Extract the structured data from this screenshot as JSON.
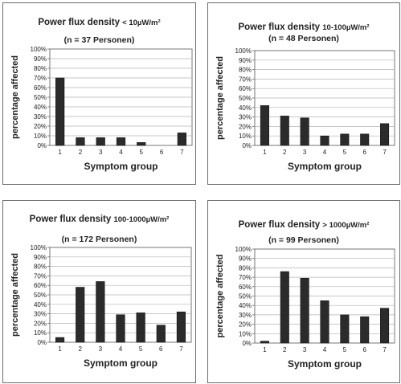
{
  "chart_data": [
    {
      "type": "bar",
      "title": "Power flux density",
      "title_unit": "< 10µW/m²",
      "subtitle": "(n = 37 Personen)",
      "xlabel": "Symptom group",
      "ylabel": "percentage affected",
      "categories": [
        "1",
        "2",
        "3",
        "4",
        "5",
        "6",
        "7"
      ],
      "values": [
        70,
        8,
        8,
        8,
        3,
        0,
        13
      ],
      "ylim": [
        0,
        100
      ],
      "yticks": [
        "0%",
        "10%",
        "20%",
        "30%",
        "40%",
        "50%",
        "60%",
        "70%",
        "80%",
        "90%",
        "100%"
      ],
      "grid": true,
      "bar_color": "#2b2b2b"
    },
    {
      "type": "bar",
      "title": "Power flux density",
      "title_unit": "10-100µW/m²",
      "subtitle": "(n = 48 Personen)",
      "xlabel": "Symptom group",
      "ylabel": "percentage affected",
      "categories": [
        "1",
        "2",
        "3",
        "4",
        "5",
        "6",
        "7"
      ],
      "values": [
        42,
        31,
        29,
        10,
        12,
        12,
        23
      ],
      "ylim": [
        0,
        100
      ],
      "yticks": [
        "0%",
        "10%",
        "20%",
        "30%",
        "40%",
        "50%",
        "60%",
        "70%",
        "80%",
        "90%",
        "100%"
      ],
      "grid": true,
      "bar_color": "#2b2b2b"
    },
    {
      "type": "bar",
      "title": "Power flux density",
      "title_unit": "100-1000µW/m²",
      "subtitle": "(n = 172 Personen)",
      "xlabel": "Symptom group",
      "ylabel": "percentage affected",
      "categories": [
        "1",
        "2",
        "3",
        "4",
        "5",
        "6",
        "7"
      ],
      "values": [
        5,
        58,
        64,
        29,
        31,
        18,
        32
      ],
      "ylim": [
        0,
        100
      ],
      "yticks": [
        "0%",
        "10%",
        "20%",
        "30%",
        "40%",
        "50%",
        "60%",
        "70%",
        "80%",
        "90%",
        "100%"
      ],
      "grid": true,
      "bar_color": "#2b2b2b"
    },
    {
      "type": "bar",
      "title": "Power flux density",
      "title_unit": "> 1000µW/m²",
      "subtitle": "(n = 99 Personen)",
      "xlabel": "Symptom group",
      "ylabel": "percentage affected",
      "categories": [
        "1",
        "2",
        "3",
        "4",
        "5",
        "6",
        "7"
      ],
      "values": [
        2,
        76,
        69,
        45,
        30,
        28,
        37
      ],
      "ylim": [
        0,
        100
      ],
      "yticks": [
        "0%",
        "10%",
        "20%",
        "30%",
        "40%",
        "50%",
        "60%",
        "70%",
        "80%",
        "90%",
        "100%"
      ],
      "grid": true,
      "bar_color": "#2b2b2b"
    }
  ]
}
